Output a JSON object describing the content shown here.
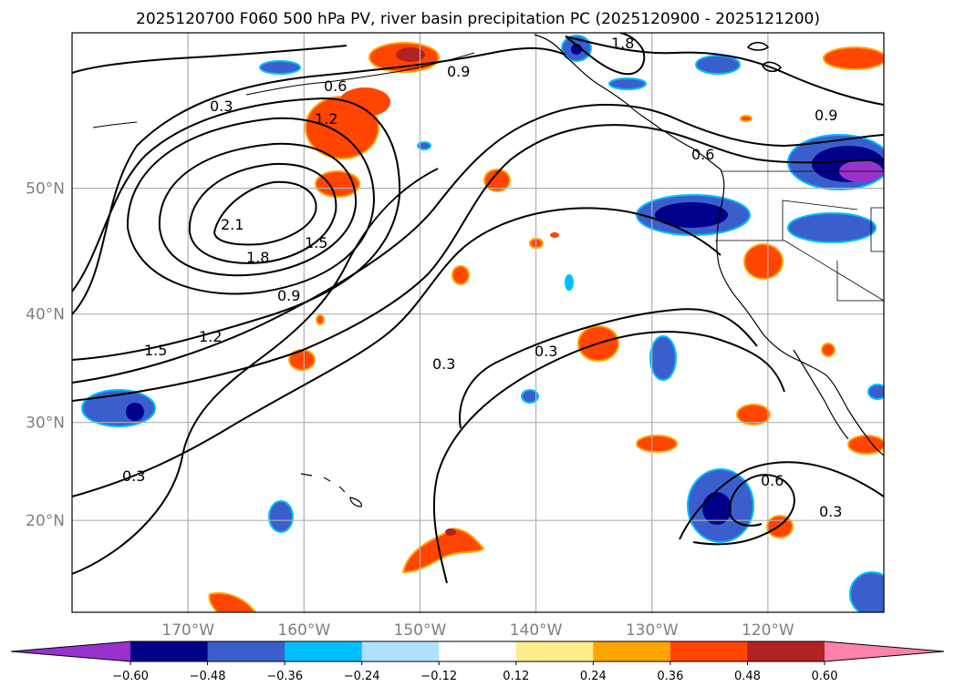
{
  "title": "2025120700 F060 500 hPa PV, river basin precipitation PC (2025120900 - 2025121200)",
  "map": {
    "lon_range": [
      -180,
      -110
    ],
    "lat_range": [
      10,
      60
    ],
    "lat_ticks": [
      {
        "value": 50,
        "label": "50°N"
      },
      {
        "value": 40,
        "label": "40°N"
      },
      {
        "value": 30,
        "label": "30°N"
      },
      {
        "value": 20,
        "label": "20°N"
      }
    ],
    "lon_ticks": [
      {
        "value": -170,
        "label": "170°W"
      },
      {
        "value": -160,
        "label": "160°W"
      },
      {
        "value": -150,
        "label": "150°W"
      },
      {
        "value": -140,
        "label": "140°W"
      },
      {
        "value": -130,
        "label": "130°W"
      },
      {
        "value": -120,
        "label": "120°W"
      }
    ],
    "contour_labels": [
      "0.3",
      "0.6",
      "0.9",
      "1.2",
      "1.5",
      "1.8",
      "2.1"
    ]
  },
  "colorbar": {
    "boundaries": [
      "−0.60",
      "−0.48",
      "−0.36",
      "−0.24",
      "−0.12",
      "0.12",
      "0.24",
      "0.36",
      "0.48",
      "0.60"
    ],
    "colors": [
      "#9932cc",
      "#00008b",
      "#3a5fcd",
      "#00bfff",
      "#b0e2ff",
      "#ffffff",
      "#ffec8b",
      "#ffa500",
      "#ff4500",
      "#b22222",
      "#ff82ab"
    ]
  },
  "colors": {
    "coast": "#000000",
    "grid": "#b0b0b0",
    "contour": "#000000"
  }
}
